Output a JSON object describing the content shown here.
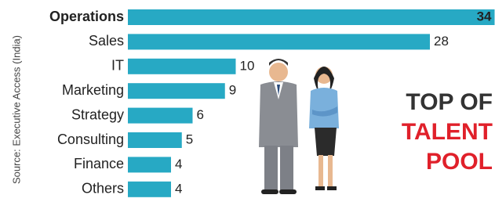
{
  "chart_data": {
    "type": "bar",
    "orientation": "horizontal",
    "categories": [
      "Operations",
      "Sales",
      "IT",
      "Marketing",
      "Strategy",
      "Consulting",
      "Finance",
      "Others"
    ],
    "values": [
      34,
      28,
      10,
      9,
      6,
      5,
      4,
      4
    ],
    "color": "#27a9c4",
    "source": "Source: Executive Access (India)",
    "headline": [
      "TOP OF",
      "TALENT",
      "POOL"
    ]
  }
}
